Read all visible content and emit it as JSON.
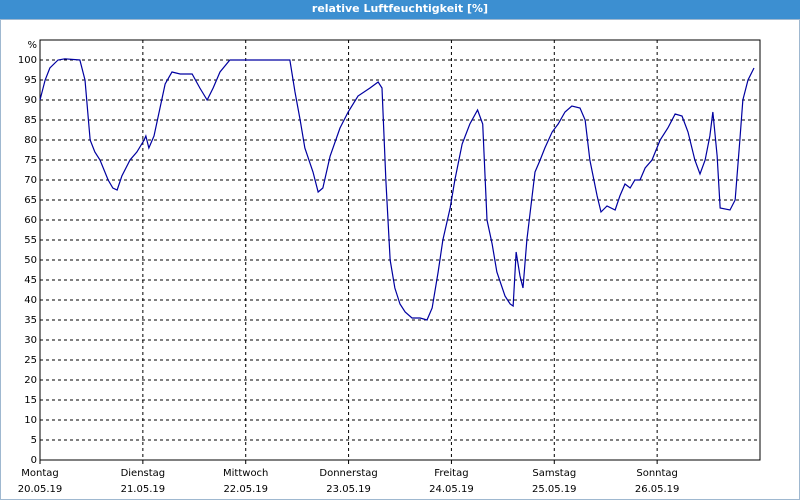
{
  "chart_data": {
    "type": "line",
    "title": "relative Luftfeuchtigkeit [%]",
    "ylabel": "%",
    "xlim": [
      0,
      168
    ],
    "ylim": [
      0,
      105
    ],
    "yticks": [
      0,
      5,
      10,
      15,
      20,
      25,
      30,
      35,
      40,
      45,
      50,
      55,
      60,
      65,
      70,
      75,
      80,
      85,
      90,
      95,
      100
    ],
    "xticks": [
      {
        "value": 0,
        "label": "Montag"
      },
      {
        "value": 24,
        "label": "Dienstag"
      },
      {
        "value": 48,
        "label": "Mittwoch"
      },
      {
        "value": 72,
        "label": "Donnerstag"
      },
      {
        "value": 96,
        "label": "Freitag"
      },
      {
        "value": 120,
        "label": "Samstag"
      },
      {
        "value": 144,
        "label": "Sonntag"
      }
    ],
    "xtick_dates": [
      "20.05.19",
      "21.05.19",
      "22.05.19",
      "23.05.19",
      "24.05.19",
      "25.05.19",
      "26.05.19"
    ],
    "grid": true,
    "series": [
      {
        "name": "relative Luftfeuchtigkeit",
        "color": "#0000a0",
        "x": [
          0,
          1.2,
          2.3,
          4.2,
          5.8,
          9.3,
          10.5,
          11.7,
          12.8,
          14,
          15.9,
          17,
          18,
          19.1,
          21,
          22.6,
          24.3,
          24.7,
          25.4,
          26.6,
          28,
          29.2,
          30.8,
          32.7,
          35.5,
          37.3,
          39,
          40.4,
          42,
          44.3,
          46.7,
          58.3,
          59.5,
          60.7,
          61.8,
          63.7,
          64.9,
          66,
          67.7,
          70,
          71.9,
          74.2,
          77,
          78.9,
          79.8,
          80.7,
          81.7,
          82.8,
          84,
          85.2,
          86.8,
          88.7,
          90.3,
          91.5,
          92.9,
          94,
          95.7,
          96.8,
          98.5,
          100.3,
          102.1,
          103.3,
          104.3,
          105.5,
          106.6,
          108.5,
          109.7,
          110.4,
          111.1,
          112,
          112.7,
          113.6,
          115.5,
          116.7,
          117.8,
          119.5,
          120.9,
          122.5,
          124.1,
          126,
          127.2,
          128.3,
          130,
          130.9,
          132.3,
          134.2,
          135.3,
          136.5,
          137.7,
          138.8,
          140,
          141.2,
          142.8,
          144.7,
          146.5,
          148.2,
          149.8,
          151.2,
          152.8,
          154,
          155.2,
          156.3,
          157,
          158,
          158.7,
          161,
          162.2,
          163.3,
          164,
          165.2,
          166.6
        ],
        "values": [
          90,
          95,
          98,
          100,
          100.3,
          100,
          95,
          80,
          77,
          75,
          70,
          68,
          67.5,
          71,
          75,
          77,
          80,
          81,
          78,
          81,
          88,
          94,
          97,
          96.5,
          96.5,
          93,
          90,
          93,
          97,
          100,
          100,
          100,
          92,
          85,
          78,
          72,
          67,
          68,
          76,
          83,
          87,
          91,
          93,
          94.5,
          93,
          70,
          50,
          43,
          39,
          37,
          35.5,
          35.5,
          35,
          38,
          47,
          55,
          63,
          70,
          79,
          84,
          87.5,
          84,
          60,
          54,
          47,
          41,
          39,
          38.5,
          52,
          46,
          43,
          55,
          72,
          75,
          78,
          82,
          84,
          87,
          88.5,
          88,
          85,
          75,
          66,
          62,
          63.5,
          62.5,
          66,
          69,
          68,
          70,
          70,
          73,
          75,
          80,
          83,
          86.5,
          86,
          82,
          75,
          71.5,
          75,
          81,
          87,
          76,
          63,
          62.5,
          65,
          80,
          90,
          95,
          98
        ]
      }
    ]
  }
}
